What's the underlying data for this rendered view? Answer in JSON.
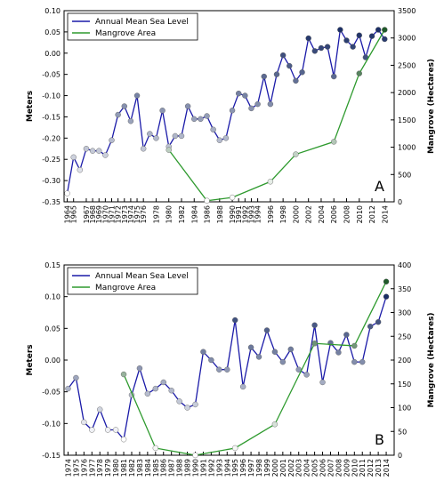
{
  "chart_data": [
    {
      "type": "line",
      "panel_label": "A",
      "y_label": "Meters",
      "y2_label": "Mangrove (Hectares)",
      "legend": "upper left",
      "xlim": [
        1963.5,
        2015.5
      ],
      "xticks": [
        1964,
        1965,
        1967,
        1968,
        1969,
        1970,
        1971,
        1972,
        1973,
        1974,
        1975,
        1976,
        1978,
        1980,
        1982,
        1984,
        1986,
        1988,
        1990,
        1991,
        1992,
        1993,
        1994,
        1996,
        1998,
        2000,
        2002,
        2004,
        2006,
        2008,
        2010,
        2012,
        2014
      ],
      "ylim": [
        -0.35,
        0.1
      ],
      "yticks": [
        {
          "value": 0.1,
          "label": "0.10"
        },
        0.05,
        {
          "value": 0,
          "label": "0.00"
        },
        -0.05,
        {
          "value": -0.1,
          "label": "-0.10"
        },
        -0.15,
        {
          "value": -0.2,
          "label": "-0.20"
        },
        -0.25,
        {
          "value": -0.3,
          "label": "-0.30"
        },
        -0.35
      ],
      "y2lim": [
        0,
        3500
      ],
      "y2ticks": [
        0,
        500,
        1000,
        1500,
        2000,
        2500,
        3000,
        3500
      ],
      "series": [
        {
          "name": "Annual Mean Sea Level",
          "color": "#1a1aa8",
          "marker_colors": [
            "#ffffff",
            "#1b2f66"
          ],
          "x": [
            1964,
            1965,
            1966,
            1967,
            1968,
            1969,
            1970,
            1971,
            1972,
            1973,
            1974,
            1975,
            1976,
            1977,
            1978,
            1979,
            1980,
            1981,
            1982,
            1983,
            1984,
            1985,
            1986,
            1987,
            1988,
            1989,
            1990,
            1991,
            1992,
            1993,
            1994,
            1995,
            1996,
            1997,
            1998,
            1999,
            2000,
            2001,
            2002,
            2003,
            2004,
            2005,
            2006,
            2007,
            2008,
            2009,
            2010,
            2011,
            2012,
            2013,
            2014
          ],
          "values": [
            -0.33,
            -0.245,
            -0.275,
            -0.225,
            -0.23,
            -0.23,
            -0.24,
            -0.205,
            -0.145,
            -0.125,
            -0.16,
            -0.1,
            -0.225,
            -0.19,
            -0.2,
            -0.135,
            -0.22,
            -0.195,
            -0.195,
            -0.125,
            -0.155,
            -0.155,
            -0.148,
            -0.18,
            -0.205,
            -0.2,
            -0.135,
            -0.095,
            -0.1,
            -0.13,
            -0.12,
            -0.055,
            -0.12,
            -0.05,
            -0.005,
            -0.03,
            -0.065,
            -0.045,
            0.035,
            0.005,
            0.012,
            0.015,
            -0.055,
            0.055,
            0.03,
            0.015,
            0.042,
            -0.01,
            0.04,
            0.055,
            0.033
          ]
        },
        {
          "name": "Mangrove Area",
          "color": "#2e9a2e",
          "axis": "y2",
          "marker_colors": [
            "#ffffff",
            "#1f5a2a"
          ],
          "x": [
            1980,
            1986,
            1990,
            1996,
            2000,
            2006,
            2010,
            2014
          ],
          "values": [
            950,
            20,
            80,
            370,
            870,
            1100,
            2350,
            3150
          ]
        }
      ]
    },
    {
      "type": "line",
      "panel_label": "B",
      "y_label": "Meters",
      "y2_label": "Mangrove (Hectares)",
      "legend": "upper left",
      "xlim": [
        1973.5,
        2015
      ],
      "xticks": [
        1974,
        1975,
        1976,
        1977,
        1978,
        1979,
        1980,
        1981,
        1982,
        1983,
        1984,
        1985,
        1986,
        1987,
        1988,
        1989,
        1990,
        1991,
        1992,
        1993,
        1994,
        1995,
        1996,
        1997,
        1998,
        1999,
        2000,
        2001,
        2002,
        2003,
        2004,
        2005,
        2006,
        2007,
        2008,
        2009,
        2010,
        2011,
        2012,
        2013,
        2014
      ],
      "ylim": [
        -0.15,
        0.15
      ],
      "yticks": [
        0.15,
        {
          "value": 0.1,
          "label": "0.10"
        },
        0.05,
        {
          "value": 0,
          "label": "0.00"
        },
        -0.05,
        {
          "value": -0.1,
          "label": "-0.10"
        },
        -0.15
      ],
      "y2lim": [
        0,
        400
      ],
      "y2ticks": [
        0,
        50,
        100,
        150,
        200,
        250,
        300,
        350,
        400
      ],
      "series": [
        {
          "name": "Annual Mean Sea Level",
          "color": "#1a1aa8",
          "marker_colors": [
            "#ffffff",
            "#1b2f66"
          ],
          "x": [
            1974,
            1975,
            1976,
            1977,
            1978,
            1979,
            1980,
            1981,
            1982,
            1983,
            1984,
            1985,
            1986,
            1987,
            1988,
            1989,
            1990,
            1991,
            1992,
            1993,
            1994,
            1995,
            1996,
            1997,
            1998,
            1999,
            2000,
            2001,
            2002,
            2003,
            2004,
            2005,
            2006,
            2007,
            2008,
            2009,
            2010,
            2011,
            2012,
            2013,
            2014
          ],
          "values": [
            -0.045,
            -0.028,
            -0.098,
            -0.11,
            -0.078,
            -0.11,
            -0.11,
            -0.125,
            -0.055,
            -0.013,
            -0.053,
            -0.045,
            -0.035,
            -0.048,
            -0.065,
            -0.075,
            -0.07,
            0.013,
            0,
            -0.015,
            -0.015,
            0.063,
            -0.042,
            0.02,
            0.005,
            0.047,
            0.013,
            -0.003,
            0.017,
            -0.015,
            -0.023,
            0.055,
            -0.035,
            0.027,
            0.012,
            0.04,
            -0.003,
            -0.003,
            0.053,
            0.06,
            0.1
          ]
        },
        {
          "name": "Mangrove Area",
          "color": "#2e9a2e",
          "axis": "y2",
          "marker_colors": [
            "#ffffff",
            "#1f5a2a"
          ],
          "x": [
            1981,
            1985,
            1990,
            1995,
            2000,
            2005,
            2010,
            2014
          ],
          "values": [
            170,
            15,
            0,
            15,
            65,
            235,
            230,
            365
          ]
        }
      ]
    }
  ]
}
